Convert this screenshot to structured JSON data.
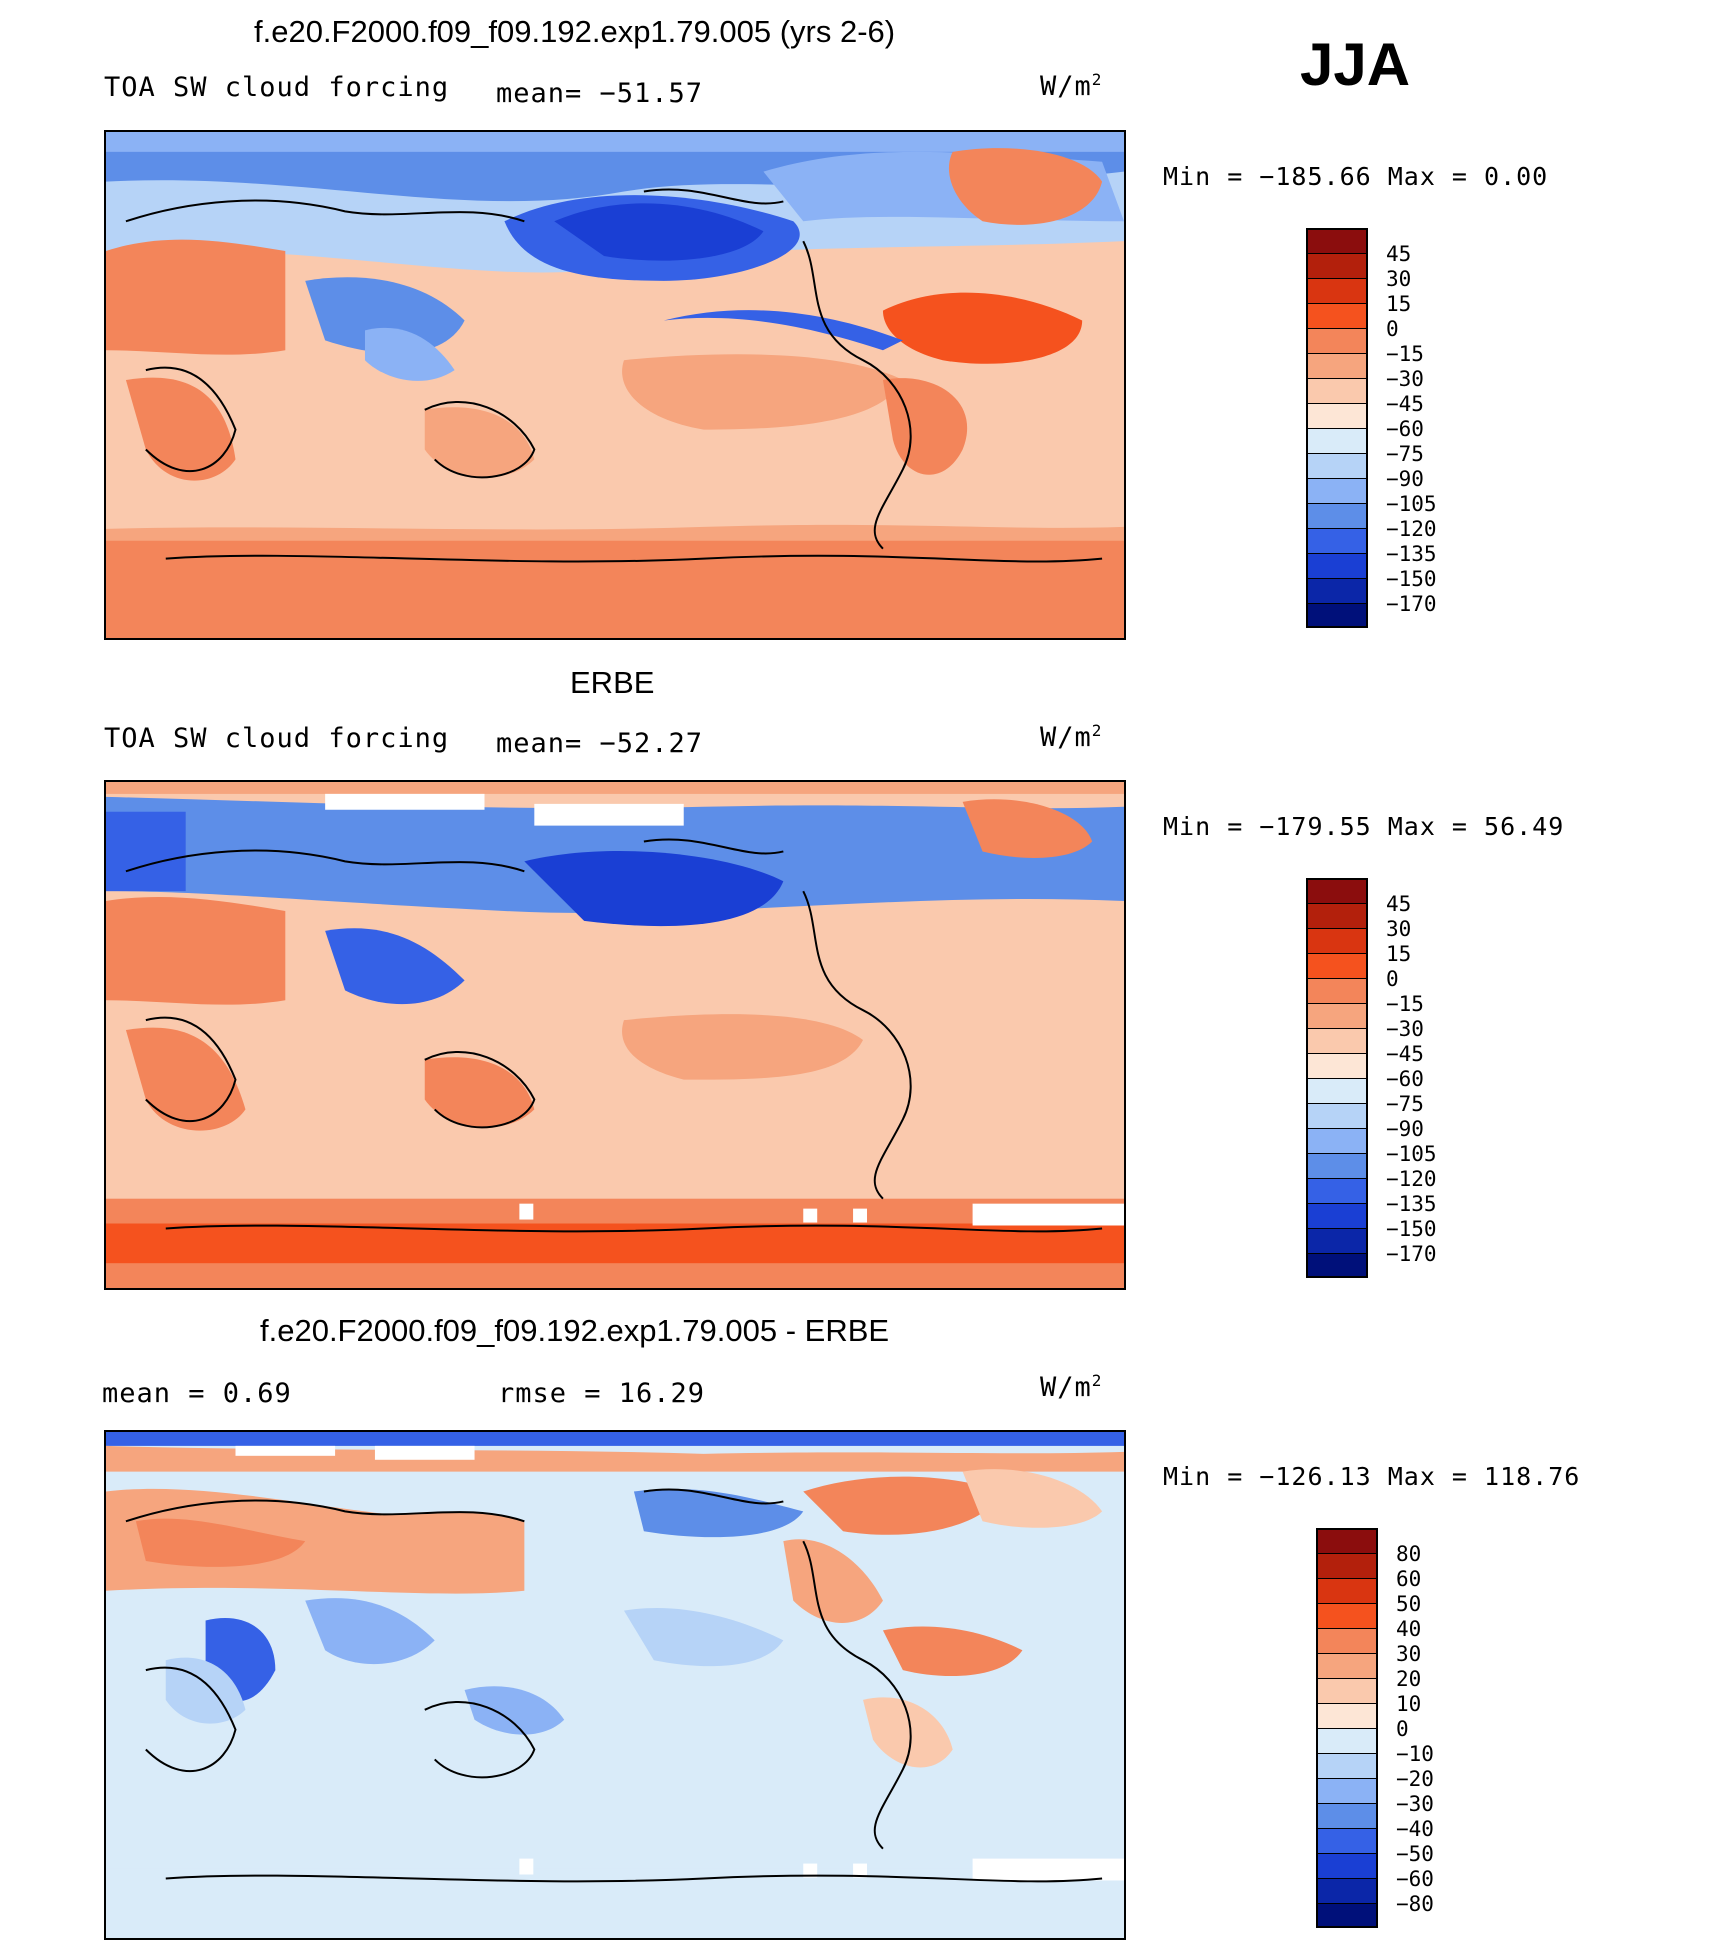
{
  "season": "JJA",
  "colors": {
    "ocean_cool": "#5d8ee8",
    "land_warm": "#f3855a"
  },
  "panels": [
    {
      "id": "model",
      "title": "f.e20.F2000.f09_f09.192.exp1.79.005 (yrs 2-6)",
      "left_label": "TOA SW cloud forcing",
      "stat_label": "mean= −51.57",
      "units": "W/m",
      "units_exp": "2",
      "minmax": "Min = −185.66 Max =   0.00"
    },
    {
      "id": "obs",
      "title": "ERBE",
      "left_label": "TOA SW cloud forcing",
      "stat_label": "mean= −52.27",
      "units": "W/m",
      "units_exp": "2",
      "minmax": "Min = −179.55 Max =  56.49"
    },
    {
      "id": "diff",
      "title": "f.e20.F2000.f09_f09.192.exp1.79.005 - ERBE",
      "left_label": "mean =   0.69",
      "stat_label": "rmse =  16.29",
      "units": "W/m",
      "units_exp": "2",
      "minmax": "Min = −126.13 Max = 118.76"
    }
  ],
  "chart_data": [
    {
      "type": "heatmap",
      "title": "f.e20.F2000.f09_f09.192.exp1.79.005 (yrs 2-6)",
      "variable": "TOA SW cloud forcing",
      "units": "W/m2",
      "mean": -51.57,
      "min": -185.66,
      "max": 0.0,
      "colorbar": {
        "levels": [
          "45",
          "30",
          "15",
          "0",
          "−15",
          "−30",
          "−45",
          "−60",
          "−75",
          "−90",
          "−105",
          "−120",
          "−135",
          "−150",
          "−170"
        ],
        "colors": [
          "#8b0d0d",
          "#b3200c",
          "#d93511",
          "#f5521e",
          "#f3855a",
          "#f6a57e",
          "#fac9ad",
          "#fde6d6",
          "#d9ebf9",
          "#b6d3f7",
          "#8bb2f5",
          "#5d8ee8",
          "#3561e6",
          "#1a3fd4",
          "#0b26a8",
          "#00107a"
        ]
      }
    },
    {
      "type": "heatmap",
      "title": "ERBE",
      "variable": "TOA SW cloud forcing",
      "units": "W/m2",
      "mean": -52.27,
      "min": -179.55,
      "max": 56.49,
      "colorbar": {
        "levels": [
          "45",
          "30",
          "15",
          "0",
          "−15",
          "−30",
          "−45",
          "−60",
          "−75",
          "−90",
          "−105",
          "−120",
          "−135",
          "−150",
          "−170"
        ],
        "colors": [
          "#8b0d0d",
          "#b3200c",
          "#d93511",
          "#f5521e",
          "#f3855a",
          "#f6a57e",
          "#fac9ad",
          "#fde6d6",
          "#d9ebf9",
          "#b6d3f7",
          "#8bb2f5",
          "#5d8ee8",
          "#3561e6",
          "#1a3fd4",
          "#0b26a8",
          "#00107a"
        ]
      }
    },
    {
      "type": "heatmap",
      "title": "f.e20.F2000.f09_f09.192.exp1.79.005 - ERBE",
      "units": "W/m2",
      "mean": 0.69,
      "rmse": 16.29,
      "min": -126.13,
      "max": 118.76,
      "colorbar": {
        "levels": [
          "80",
          "60",
          "50",
          "40",
          "30",
          "20",
          "10",
          "0",
          "−10",
          "−20",
          "−30",
          "−40",
          "−50",
          "−60",
          "−80"
        ],
        "colors": [
          "#8b0d0d",
          "#b3200c",
          "#d93511",
          "#f5521e",
          "#f3855a",
          "#f6a57e",
          "#fac9ad",
          "#fde6d6",
          "#d9ebf9",
          "#b6d3f7",
          "#8bb2f5",
          "#5d8ee8",
          "#3561e6",
          "#1a3fd4",
          "#0b26a8",
          "#00107a"
        ]
      }
    }
  ]
}
